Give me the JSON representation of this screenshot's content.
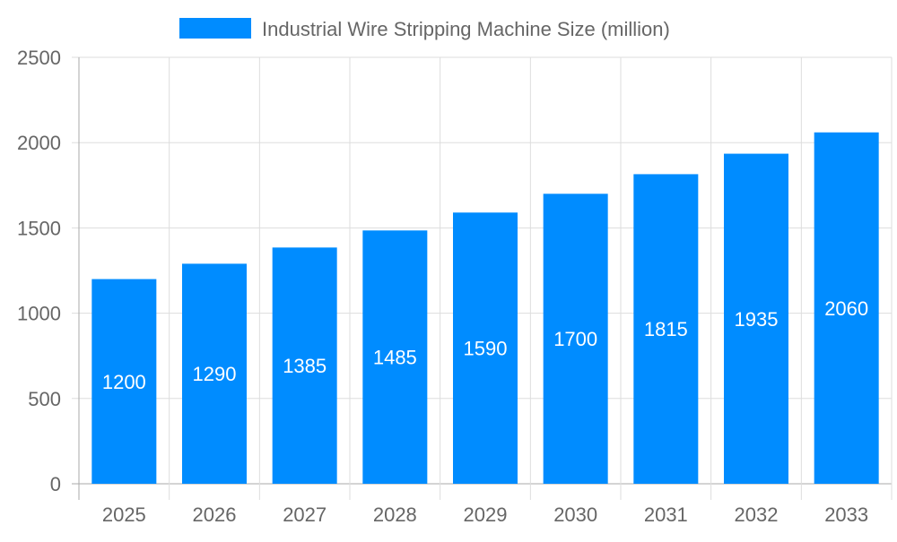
{
  "chart_data": {
    "type": "bar",
    "title": "",
    "xlabel": "",
    "ylabel": "",
    "categories": [
      "2025",
      "2026",
      "2027",
      "2028",
      "2029",
      "2030",
      "2031",
      "2032",
      "2033"
    ],
    "series": [
      {
        "name": "Industrial Wire Stripping Machine Size (million)",
        "values": [
          1200,
          1290,
          1385,
          1485,
          1590,
          1700,
          1815,
          1935,
          2060
        ]
      }
    ],
    "ylim": [
      0,
      2500
    ],
    "yticks": [
      0,
      500,
      1000,
      1500,
      2000,
      2500
    ],
    "grid": true,
    "legend_position": "top",
    "data_labels": "inside-bar",
    "colors": {
      "bar": "#008cff",
      "label": "#ffffff",
      "text": "#666666",
      "grid": "#dddddd"
    }
  }
}
